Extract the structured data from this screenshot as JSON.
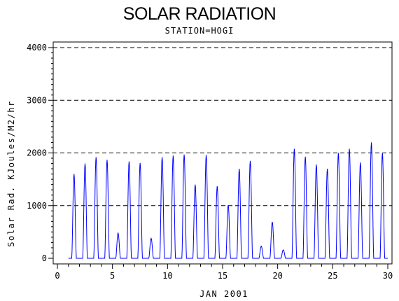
{
  "title": "SOLAR RADIATION",
  "subtitle": "STATION=HOGI",
  "chart_data": {
    "type": "line",
    "title": "SOLAR RADIATION",
    "subtitle": "STATION=HOGI",
    "xlabel": "JAN 2001",
    "ylabel": "Solar Rad. KJoules/M2/hr",
    "xlim": [
      0,
      30.5
    ],
    "ylim": [
      0,
      4000
    ],
    "xticks": [
      0,
      5,
      10,
      15,
      20,
      25,
      30
    ],
    "yticks": [
      0,
      1000,
      2000,
      3000,
      4000
    ],
    "grid": "horizontal dashed at major y ticks",
    "line_color": "#0000ff",
    "series": [
      {
        "daily_peaks": [
          {
            "day": 1,
            "peak": 1600
          },
          {
            "day": 2,
            "peak": 1800
          },
          {
            "day": 3,
            "peak": 1920
          },
          {
            "day": 4,
            "peak": 1870
          },
          {
            "day": 5,
            "peak": 480
          },
          {
            "day": 6,
            "peak": 1840
          },
          {
            "day": 7,
            "peak": 1810
          },
          {
            "day": 8,
            "peak": 380
          },
          {
            "day": 9,
            "peak": 1920
          },
          {
            "day": 10,
            "peak": 1950
          },
          {
            "day": 11,
            "peak": 1970
          },
          {
            "day": 12,
            "peak": 1400
          },
          {
            "day": 13,
            "peak": 1960
          },
          {
            "day": 14,
            "peak": 1370
          },
          {
            "day": 15,
            "peak": 1010
          },
          {
            "day": 16,
            "peak": 1700
          },
          {
            "day": 17,
            "peak": 1850
          },
          {
            "day": 18,
            "peak": 230
          },
          {
            "day": 19,
            "peak": 690
          },
          {
            "day": 20,
            "peak": 160
          },
          {
            "day": 21,
            "peak": 2080
          },
          {
            "day": 22,
            "peak": 1930
          },
          {
            "day": 23,
            "peak": 1780
          },
          {
            "day": 24,
            "peak": 1700
          },
          {
            "day": 25,
            "peak": 2000
          },
          {
            "day": 26,
            "peak": 2080
          },
          {
            "day": 27,
            "peak": 1820
          },
          {
            "day": 28,
            "peak": 2200
          },
          {
            "day": 29,
            "peak": 2000
          }
        ]
      }
    ]
  }
}
